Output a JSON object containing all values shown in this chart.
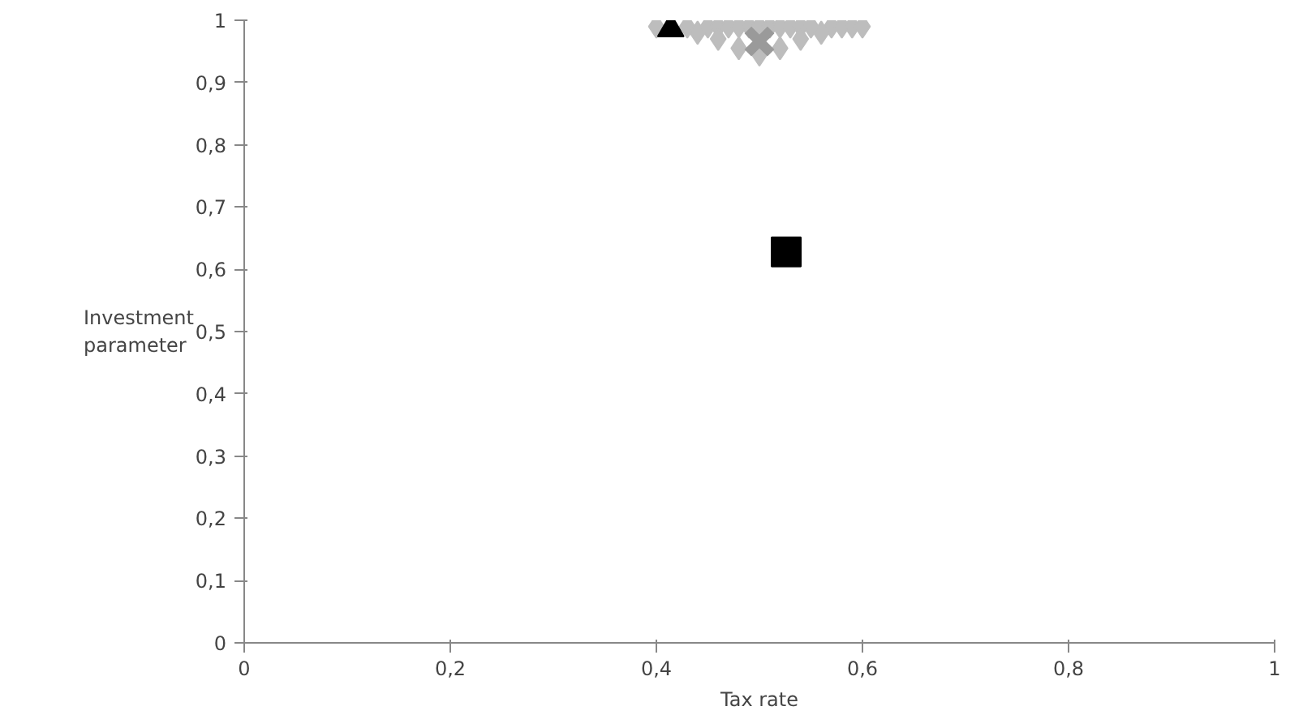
{
  "chart_data": {
    "type": "scatter",
    "xlabel": "Tax rate",
    "ylabel": "Investment parameter",
    "xlim": [
      0,
      1
    ],
    "ylim": [
      0,
      1
    ],
    "xticks": [
      0,
      {
        "value": 0.2,
        "label": "0,2"
      },
      {
        "value": 0.4,
        "label": "0,4"
      },
      {
        "value": 0.6,
        "label": "0,6"
      },
      {
        "value": 0.8,
        "label": "0,8"
      },
      1
    ],
    "yticks": [
      0,
      {
        "value": 0.1,
        "label": "0,1"
      },
      {
        "value": 0.2,
        "label": "0,2"
      },
      {
        "value": 0.3,
        "label": "0,3"
      },
      {
        "value": 0.4,
        "label": "0,4"
      },
      {
        "value": 0.5,
        "label": "0,5"
      },
      {
        "value": 0.6,
        "label": "0,6"
      },
      {
        "value": 0.7,
        "label": "0,7"
      },
      {
        "value": 0.8,
        "label": "0,8"
      },
      {
        "value": 0.9,
        "label": "0,9"
      },
      1
    ],
    "grid": false,
    "series": [
      {
        "color": "#bdbdbd",
        "marker": "diamond",
        "x": [
          0.4,
          0.41,
          0.42,
          0.43,
          0.44,
          0.45,
          0.46,
          0.47,
          0.48,
          0.49,
          0.5,
          0.51,
          0.52,
          0.53,
          0.54,
          0.55,
          0.56,
          0.57,
          0.58,
          0.59,
          0.6,
          0.44,
          0.46,
          0.48,
          0.5,
          0.52,
          0.54,
          0.56
        ],
        "values": [
          0.99,
          null,
          null,
          0.99,
          null,
          0.99,
          0.99,
          0.99,
          0.99,
          0.99,
          0.99,
          0.99,
          0.99,
          0.99,
          0.99,
          0.99,
          null,
          0.99,
          0.99,
          0.99,
          0.99,
          0.98,
          0.97,
          0.955,
          0.945,
          0.955,
          0.97,
          0.98
        ]
      },
      {
        "color": "#000000",
        "marker": "triangle",
        "x": [
          0.414
        ],
        "values": [
          0.986
        ]
      },
      {
        "color": "#9a9a9a",
        "marker": "cross",
        "x": [
          0.5
        ],
        "values": [
          0.966
        ]
      },
      {
        "color": "#000000",
        "marker": "square",
        "x": [
          0.526
        ],
        "values": [
          0.628
        ]
      }
    ]
  }
}
